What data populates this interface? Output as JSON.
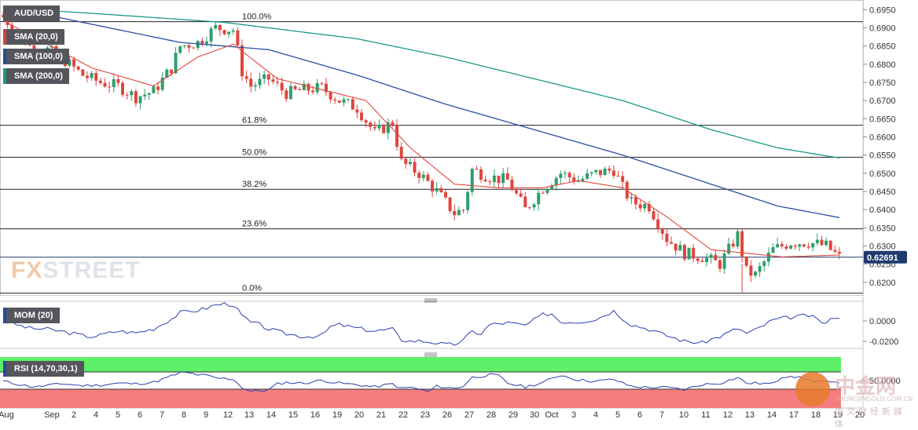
{
  "chart_data": {
    "type": "candlestick",
    "pair": "AUD/USD",
    "indicators": {
      "sma20": "SMA (20,0)",
      "sma100": "SMA (100,0)",
      "sma200": "SMA (200,0)",
      "mom": "MOM (20)",
      "rsi": "RSI (14,70,30,1)"
    },
    "last_price": "0.62691",
    "price_ticks": [
      "0.6950",
      "0.6900",
      "0.6850",
      "0.6800",
      "0.6750",
      "0.6700",
      "0.6650",
      "0.6600",
      "0.6550",
      "0.6500",
      "0.6450",
      "0.6400",
      "0.6350",
      "0.6300",
      "0.6250",
      "0.6200"
    ],
    "price_range": [
      0.6165,
      0.6968
    ],
    "mom_ticks": [
      "0.0000",
      "-0.0200"
    ],
    "rsi_ticks": [
      "50.0000"
    ],
    "x_labels": [
      "Aug",
      "Sep",
      "2",
      "4",
      "5",
      "6",
      "7",
      "8",
      "9",
      "12",
      "13",
      "14",
      "15",
      "16",
      "19",
      "20",
      "21",
      "22",
      "23",
      "26",
      "27",
      "28",
      "29",
      "30",
      "Oct",
      "3",
      "4",
      "5",
      "6",
      "7",
      "10",
      "11",
      "12",
      "13",
      "14",
      "17",
      "18",
      "19",
      "20"
    ],
    "fibonacci": [
      {
        "label": "100.0%",
        "price": 0.6917
      },
      {
        "label": "61.8%",
        "price": 0.6632
      },
      {
        "label": "50.0%",
        "price": 0.6544
      },
      {
        "label": "38.2%",
        "price": 0.6456
      },
      {
        "label": "23.6%",
        "price": 0.6347
      },
      {
        "label": "0.0%",
        "price": 0.617
      }
    ],
    "close_anchors": [
      [
        0,
        0.693
      ],
      [
        6,
        0.685
      ],
      [
        10,
        0.684
      ],
      [
        14,
        0.681
      ],
      [
        18,
        0.677
      ],
      [
        22,
        0.675
      ],
      [
        26,
        0.674
      ],
      [
        30,
        0.671
      ],
      [
        34,
        0.6725
      ],
      [
        38,
        0.679
      ],
      [
        40,
        0.685
      ],
      [
        44,
        0.686
      ],
      [
        48,
        0.69
      ],
      [
        52,
        0.6895
      ],
      [
        54,
        0.678
      ],
      [
        56,
        0.674
      ],
      [
        60,
        0.676
      ],
      [
        64,
        0.672
      ],
      [
        68,
        0.673
      ],
      [
        72,
        0.6735
      ],
      [
        76,
        0.67
      ],
      [
        80,
        0.668
      ],
      [
        84,
        0.661
      ],
      [
        88,
        0.664
      ],
      [
        90,
        0.653
      ],
      [
        94,
        0.65
      ],
      [
        98,
        0.645
      ],
      [
        102,
        0.639
      ],
      [
        104,
        0.64
      ],
      [
        106,
        0.651
      ],
      [
        110,
        0.649
      ],
      [
        114,
        0.648
      ],
      [
        118,
        0.64
      ],
      [
        122,
        0.646
      ],
      [
        126,
        0.65
      ],
      [
        130,
        0.648
      ],
      [
        134,
        0.65
      ],
      [
        138,
        0.651
      ],
      [
        140,
        0.646
      ],
      [
        142,
        0.642
      ],
      [
        146,
        0.641
      ],
      [
        150,
        0.632
      ],
      [
        154,
        0.628
      ],
      [
        158,
        0.627
      ],
      [
        162,
        0.625
      ],
      [
        164,
        0.629
      ],
      [
        166,
        0.633
      ],
      [
        168,
        0.623
      ],
      [
        170,
        0.622
      ],
      [
        174,
        0.629
      ],
      [
        178,
        0.631
      ],
      [
        182,
        0.631
      ],
      [
        186,
        0.63
      ],
      [
        189,
        0.6269
      ]
    ],
    "sma20_anchors": [
      [
        0,
        0.692
      ],
      [
        20,
        0.679
      ],
      [
        34,
        0.674
      ],
      [
        44,
        0.682
      ],
      [
        52,
        0.6855
      ],
      [
        62,
        0.676
      ],
      [
        72,
        0.673
      ],
      [
        82,
        0.67
      ],
      [
        92,
        0.657
      ],
      [
        102,
        0.647
      ],
      [
        112,
        0.646
      ],
      [
        122,
        0.646
      ],
      [
        130,
        0.648
      ],
      [
        140,
        0.646
      ],
      [
        150,
        0.638
      ],
      [
        160,
        0.629
      ],
      [
        168,
        0.628
      ],
      [
        176,
        0.627
      ],
      [
        189,
        0.6275
      ]
    ],
    "sma100_anchors": [
      [
        0,
        0.696
      ],
      [
        20,
        0.691
      ],
      [
        40,
        0.686
      ],
      [
        60,
        0.684
      ],
      [
        80,
        0.677
      ],
      [
        100,
        0.669
      ],
      [
        120,
        0.662
      ],
      [
        140,
        0.655
      ],
      [
        160,
        0.647
      ],
      [
        175,
        0.641
      ],
      [
        189,
        0.6378
      ]
    ],
    "sma200_anchors": [
      [
        0,
        0.6955
      ],
      [
        20,
        0.694
      ],
      [
        50,
        0.6915
      ],
      [
        80,
        0.687
      ],
      [
        100,
        0.682
      ],
      [
        120,
        0.676
      ],
      [
        140,
        0.67
      ],
      [
        160,
        0.662
      ],
      [
        175,
        0.657
      ],
      [
        189,
        0.6542
      ]
    ],
    "colors": {
      "bull": "#2e9e6e",
      "bear": "#e0453d",
      "sma20": "#e0453d",
      "sma100": "#2b4fa3",
      "sma200": "#1a9a86",
      "rsi_high": "#5ff06a",
      "rsi_low": "#f57d7d",
      "line": "#2a3fb0"
    }
  },
  "watermark": {
    "brand_fx": "FX",
    "brand_street": "STREET",
    "cn_title": "中金网",
    "cn_url": "ZHONGJINGOLD.COM.CN",
    "cn_sub": "中文财经新媒体"
  }
}
